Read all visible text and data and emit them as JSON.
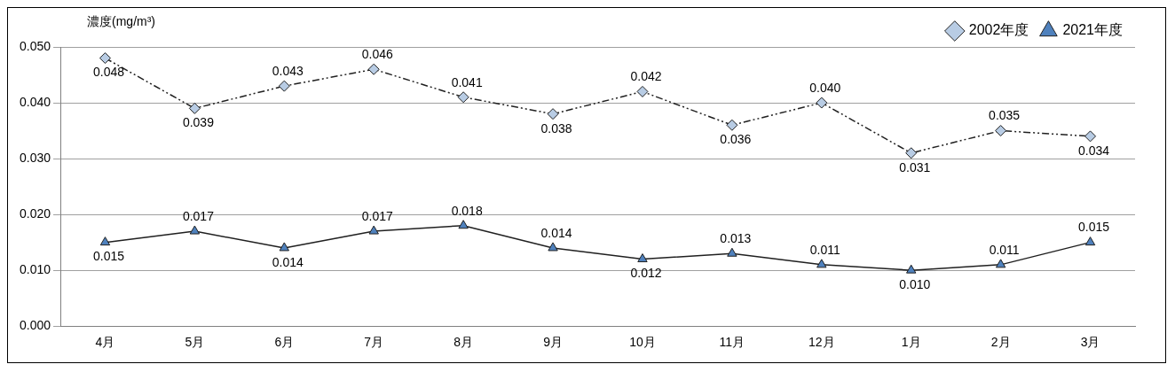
{
  "chart_data": {
    "type": "line",
    "ylabel": "濃度(mg/m³)",
    "categories": [
      "4月",
      "5月",
      "6月",
      "7月",
      "8月",
      "9月",
      "10月",
      "11月",
      "12月",
      "1月",
      "2月",
      "3月"
    ],
    "series": [
      {
        "name": "2002年度",
        "color": "#b8cce4",
        "marker": "diamond",
        "line_style": "dashed",
        "values": [
          0.048,
          0.039,
          0.043,
          0.046,
          0.041,
          0.038,
          0.042,
          0.036,
          0.04,
          0.031,
          0.035,
          0.034
        ],
        "value_labels": [
          "0.048",
          "0.039",
          "0.043",
          "0.046",
          "0.041",
          "0.038",
          "0.042",
          "0.036",
          "0.040",
          "0.031",
          "0.035",
          "0.034"
        ]
      },
      {
        "name": "2021年度",
        "color": "#4f81bd",
        "marker": "triangle",
        "line_style": "solid",
        "values": [
          0.015,
          0.017,
          0.014,
          0.017,
          0.018,
          0.014,
          0.012,
          0.013,
          0.011,
          0.01,
          0.011,
          0.015
        ],
        "value_labels": [
          "0.015",
          "0.017",
          "0.014",
          "0.017",
          "0.018",
          "0.014",
          "0.012",
          "0.013",
          "0.011",
          "0.010",
          "0.011",
          "0.015"
        ]
      }
    ],
    "ylim": [
      0,
      0.05
    ],
    "yticks": [
      {
        "value": 0,
        "label": "0.000"
      },
      {
        "value": 0.01,
        "label": "0.010"
      },
      {
        "value": 0.02,
        "label": "0.020"
      },
      {
        "value": 0.03,
        "label": "0.030"
      },
      {
        "value": 0.04,
        "label": "0.040"
      },
      {
        "value": 0.05,
        "label": "0.050"
      }
    ],
    "grid": "y",
    "legend": "top right"
  }
}
